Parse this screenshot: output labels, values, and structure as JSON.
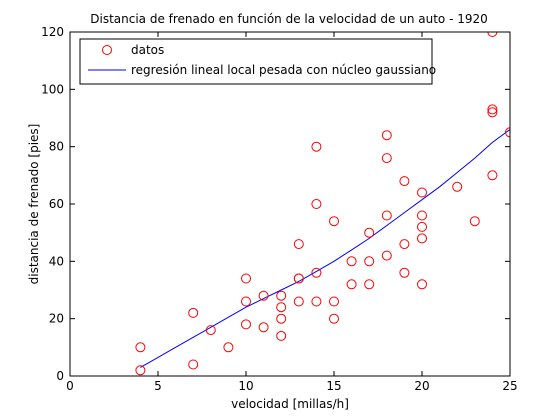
{
  "chart_data": {
    "type": "scatter",
    "title": "Distancia de frenado en función de la velocidad de un auto - 1920",
    "xlabel": "velocidad [millas/h]",
    "ylabel": "distancia de frenado [pies]",
    "xlim": [
      0,
      25
    ],
    "ylim": [
      0,
      120
    ],
    "x_ticks": [
      "0",
      "5",
      "10",
      "15",
      "20",
      "25"
    ],
    "y_ticks": [
      "0",
      "20",
      "40",
      "60",
      "80",
      "100",
      "120"
    ],
    "grid": false,
    "legend": {
      "placement": "top-left",
      "entries": [
        "datos",
        "regresión lineal local pesada con núcleo gaussiano"
      ]
    },
    "colors": {
      "points": "#ff0000",
      "line": "#0000ff"
    },
    "series": [
      {
        "name": "datos",
        "kind": "scatter",
        "x": [
          4,
          4,
          7,
          7,
          8,
          9,
          10,
          10,
          10,
          11,
          11,
          12,
          12,
          12,
          12,
          13,
          13,
          13,
          13,
          14,
          14,
          14,
          14,
          15,
          15,
          15,
          16,
          16,
          17,
          17,
          17,
          18,
          18,
          18,
          18,
          19,
          19,
          19,
          20,
          20,
          20,
          20,
          20,
          22,
          23,
          24,
          24,
          24,
          24,
          25
        ],
        "y": [
          2,
          10,
          4,
          22,
          16,
          10,
          18,
          26,
          34,
          17,
          28,
          14,
          20,
          24,
          28,
          26,
          34,
          34,
          46,
          26,
          36,
          60,
          80,
          20,
          26,
          54,
          32,
          40,
          32,
          40,
          50,
          42,
          56,
          76,
          84,
          36,
          46,
          68,
          32,
          48,
          52,
          56,
          64,
          66,
          54,
          70,
          92,
          93,
          120,
          85
        ]
      },
      {
        "name": "regresión lineal local pesada con núcleo gaussiano",
        "kind": "line",
        "x": [
          4,
          5,
          6,
          7,
          8,
          9,
          10,
          11,
          12,
          13,
          14,
          15,
          16,
          17,
          18,
          19,
          20,
          21,
          22,
          23,
          24,
          25
        ],
        "y": [
          3,
          6.5,
          10,
          13.5,
          17,
          20.5,
          24,
          27,
          30,
          33,
          36.5,
          40,
          44,
          48,
          52.5,
          57,
          61.5,
          66,
          71,
          76,
          81.5,
          86
        ]
      }
    ]
  }
}
